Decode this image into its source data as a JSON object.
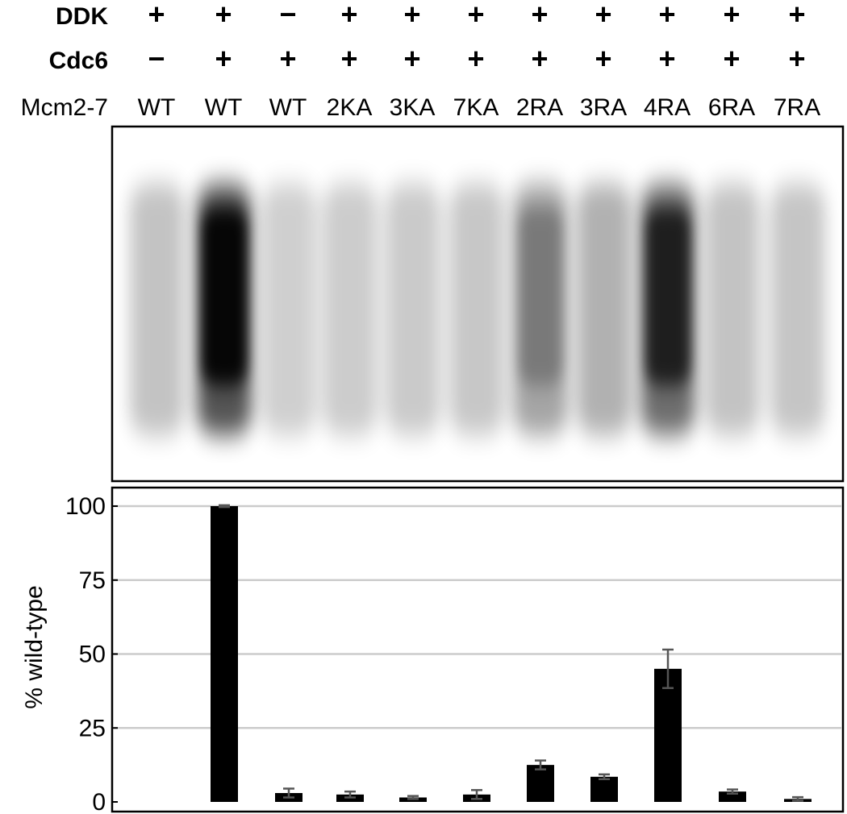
{
  "header": {
    "row_labels": [
      {
        "key": "ddk",
        "label": "DDK",
        "bold": true
      },
      {
        "key": "cdc6",
        "label": "Cdc6",
        "bold": true
      },
      {
        "key": "mcm",
        "label": "Mcm2-7",
        "bold": false
      }
    ],
    "lanes": [
      {
        "ddk": "+",
        "cdc6": "−",
        "mcm": "WT"
      },
      {
        "ddk": "+",
        "cdc6": "+",
        "mcm": "WT"
      },
      {
        "ddk": "−",
        "cdc6": "+",
        "mcm": "WT"
      },
      {
        "ddk": "+",
        "cdc6": "+",
        "mcm": "2KA"
      },
      {
        "ddk": "+",
        "cdc6": "+",
        "mcm": "3KA"
      },
      {
        "ddk": "+",
        "cdc6": "+",
        "mcm": "7KA"
      },
      {
        "ddk": "+",
        "cdc6": "+",
        "mcm": "2RA"
      },
      {
        "ddk": "+",
        "cdc6": "+",
        "mcm": "3RA"
      },
      {
        "ddk": "+",
        "cdc6": "+",
        "mcm": "4RA"
      },
      {
        "ddk": "+",
        "cdc6": "+",
        "mcm": "6RA"
      },
      {
        "ddk": "+",
        "cdc6": "+",
        "mcm": "7RA"
      }
    ]
  },
  "gel": {
    "band_intensity": [
      0.2,
      1.0,
      0.12,
      0.14,
      0.15,
      0.17,
      0.42,
      0.33,
      0.82,
      0.2,
      0.19
    ]
  },
  "chart_data": {
    "type": "bar",
    "categories": [
      "WT",
      "WT",
      "WT",
      "2KA",
      "3KA",
      "7KA",
      "2RA",
      "3RA",
      "4RA",
      "6RA",
      "7RA"
    ],
    "series": [
      {
        "values": [
          0,
          100,
          3,
          2.5,
          1.5,
          2.5,
          12.5,
          8.5,
          45,
          3.5,
          1
        ],
        "error": [
          0,
          0.3,
          1.5,
          1,
          0.5,
          1.5,
          1.5,
          0.8,
          6.5,
          0.7,
          0.6
        ]
      }
    ],
    "ylabel": "% wild-type",
    "ylim": [
      0,
      100
    ],
    "yticks": [
      0,
      25,
      50,
      75,
      100
    ],
    "grid": true,
    "bar_color": "#000000",
    "error_color": "#555555",
    "grid_color": "#cccccc"
  }
}
